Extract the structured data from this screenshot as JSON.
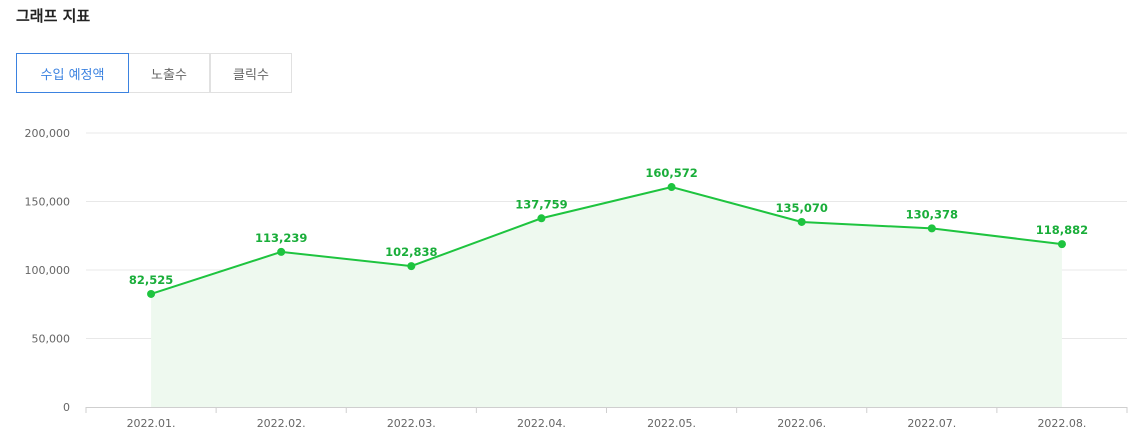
{
  "title": "그래프 지표",
  "tabs": [
    {
      "label": "수입 예정액",
      "active": true
    },
    {
      "label": "노출수",
      "active": false
    },
    {
      "label": "클릭수",
      "active": false
    }
  ],
  "colors": {
    "accent": "#3b82e0",
    "series": "#1ec43f",
    "area": "#eef9ef",
    "grid": "#e8e8e8",
    "label": "#1aae3a"
  },
  "chart_data": {
    "type": "area",
    "categories": [
      "2022.01.",
      "2022.02.",
      "2022.03.",
      "2022.04.",
      "2022.05.",
      "2022.06.",
      "2022.07.",
      "2022.08."
    ],
    "series": [
      {
        "values": [
          82525,
          113239,
          102838,
          137759,
          160572,
          135070,
          130378,
          118882
        ]
      }
    ],
    "data_labels": [
      "82,525",
      "113,239",
      "102,838",
      "137,759",
      "160,572",
      "135,070",
      "130,378",
      "118,882"
    ],
    "y_ticks": [
      0,
      50000,
      100000,
      150000,
      200000
    ],
    "y_tick_labels": [
      "0",
      "50,000",
      "100,000",
      "150,000",
      "200,000"
    ],
    "ylim": [
      0,
      200000
    ],
    "grid": true
  }
}
